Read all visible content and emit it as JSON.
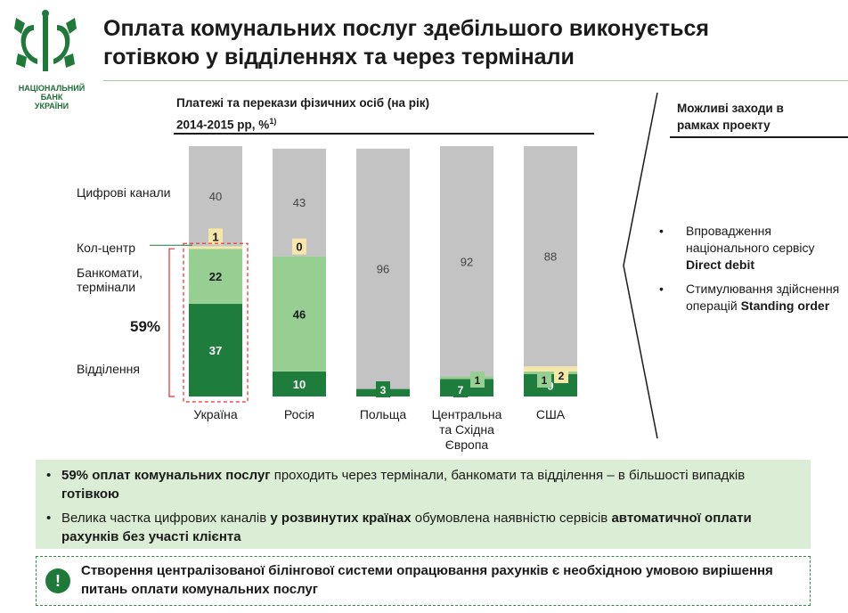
{
  "logo": {
    "lines": [
      "НАЦІОНАЛЬНИЙ",
      "БАНК",
      "УКРАЇНИ"
    ]
  },
  "title": {
    "line1": "Оплата комунальних послуг здебільшого виконується",
    "line2": "готівкою у відділеннях та через термінали"
  },
  "chart_title": {
    "line1": "Платежі та перекази фізичних осіб (на рік)",
    "line2": "2014-2015 рр, %",
    "footnote": "1)"
  },
  "chart_data": {
    "type": "bar",
    "stacked": true,
    "percent": true,
    "categories": [
      "Україна",
      "Росія",
      "Польща",
      "Центральна та Східна Європа",
      "США"
    ],
    "series": [
      {
        "name": "Відділення",
        "values": [
          37,
          10,
          3,
          7,
          9
        ],
        "color": "#1e7d3c"
      },
      {
        "name": "Банкомати, термінали",
        "values": [
          22,
          46,
          0,
          1,
          1
        ],
        "color": "#97cf92"
      },
      {
        "name": "Кол-центр",
        "values": [
          1,
          0,
          0,
          0,
          2
        ],
        "color": "#f6e7a8"
      },
      {
        "name": "Цифрові канали",
        "values": [
          40,
          43,
          96,
          92,
          88
        ],
        "color": "#c3c3c3"
      }
    ],
    "category_lines": [
      [
        "Україна"
      ],
      [
        "Росія"
      ],
      [
        "Польща"
      ],
      [
        "Центральна",
        "та Східна",
        "Європа"
      ],
      [
        "США"
      ]
    ],
    "highlight": {
      "label": "59%",
      "category": "Україна",
      "series": [
        "Відділення",
        "Банкомати, термінали"
      ]
    },
    "ylim": [
      0,
      100
    ],
    "legend_placement": "left",
    "grid": false
  },
  "segment_labels": {
    "digital": "Цифрові канали",
    "callcenter": "Кол-центр",
    "atm_line1": "Банкомати,",
    "atm_line2": "термінали",
    "branches": "Відділення"
  },
  "measures": {
    "title_line1": "Можливі заходи в",
    "title_line2": "рамках проекту",
    "items": [
      {
        "pre": "Впровадження національного сервісу ",
        "bold": "Direct debit"
      },
      {
        "pre": "Стимулювання здійснення операцій ",
        "bold": "Standing order"
      }
    ]
  },
  "findings": [
    {
      "b1": "59% оплат комунальних послуг",
      "t1": " проходить через термінали, банкомати та відділення – в більшості випадків ",
      "b2": "готівкою",
      "t2": ""
    },
    {
      "b1": "",
      "t1": "Велика частка цифрових каналів ",
      "b2": "у розвинутих країнах",
      "t2": " обумовлена наявністю сервісів ",
      "b3": "автоматичної оплати рахунків без участі клієнта"
    }
  ],
  "conclusion": {
    "icon": "!",
    "text": "Створення централізованої білінгової системи опрацювання рахунків є необхідною умовою вирішення питань оплати комунальних послуг"
  },
  "bullet": "•",
  "colors": {
    "accent": "#1e7d3c",
    "highlight_red": "#e03030",
    "panel_bg": "#dbeed5"
  }
}
